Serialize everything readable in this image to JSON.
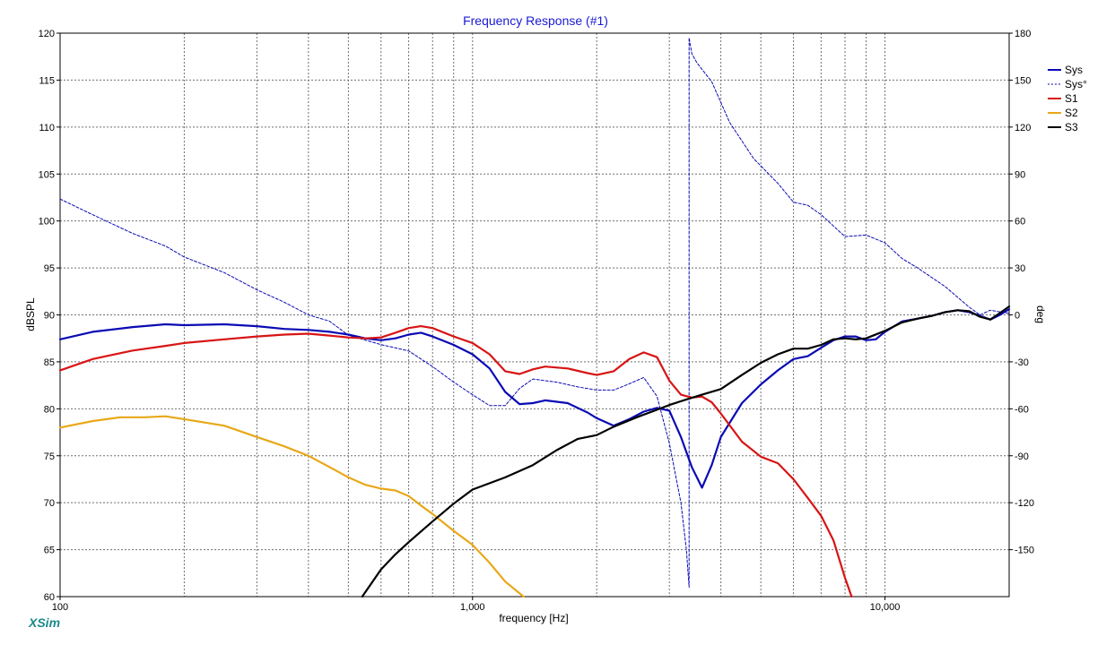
{
  "chart_data": {
    "type": "line",
    "title": "Frequency Response (#1)",
    "xlabel": "frequency [Hz]",
    "ylabel": "dBSPL",
    "y2label": "deg",
    "x_scale": "log",
    "xlim": [
      100,
      20000
    ],
    "ylim": [
      60,
      120
    ],
    "y2lim": [
      -180,
      180
    ],
    "x_tick_labels": [
      {
        "value": 100,
        "label": "100"
      },
      {
        "value": 1000,
        "label": "1,000"
      },
      {
        "value": 10000,
        "label": "10,000"
      }
    ],
    "y_ticks": [
      120,
      115,
      110,
      105,
      100,
      95,
      90,
      85,
      80,
      75,
      70,
      65,
      60
    ],
    "y2_ticks": [
      180,
      150,
      120,
      90,
      60,
      30,
      0,
      -30,
      -60,
      -90,
      -120,
      -150
    ],
    "grid": true,
    "legend_position": "top-right",
    "brand": "XSim",
    "series": [
      {
        "name": "Sys",
        "axis": "left",
        "color": "#0a0ab4",
        "style": "solid",
        "x": [
          100,
          120,
          150,
          180,
          200,
          250,
          300,
          350,
          400,
          450,
          500,
          550,
          600,
          650,
          700,
          750,
          800,
          900,
          1000,
          1100,
          1200,
          1300,
          1400,
          1500,
          1700,
          1900,
          2000,
          2200,
          2400,
          2600,
          2800,
          3000,
          3200,
          3400,
          3600,
          3800,
          4000,
          4500,
          5000,
          5500,
          6000,
          6500,
          7000,
          7500,
          8000,
          8500,
          9000,
          9500,
          10000,
          11000,
          12000,
          13000,
          14000,
          15000,
          16000,
          17000,
          18000,
          19000,
          20000
        ],
        "y": [
          87.4,
          88.2,
          88.7,
          89.0,
          88.9,
          89.0,
          88.8,
          88.5,
          88.4,
          88.2,
          87.9,
          87.5,
          87.3,
          87.5,
          87.9,
          88.1,
          87.7,
          86.8,
          85.8,
          84.3,
          81.8,
          80.5,
          80.6,
          80.9,
          80.6,
          79.6,
          79.0,
          78.2,
          78.9,
          79.7,
          80.1,
          79.8,
          77.0,
          73.8,
          71.6,
          74.0,
          77.0,
          80.6,
          82.6,
          84.1,
          85.3,
          85.6,
          86.5,
          87.3,
          87.7,
          87.7,
          87.3,
          87.4,
          88.2,
          89.3,
          89.6,
          89.9,
          90.3,
          90.5,
          90.3,
          89.9,
          89.5,
          90.0,
          90.6
        ]
      },
      {
        "name": "Sys°",
        "axis": "right",
        "color": "#0a0ab4",
        "style": "dashed",
        "x": [
          100,
          120,
          150,
          180,
          200,
          250,
          300,
          350,
          400,
          450,
          500,
          600,
          700,
          800,
          900,
          1000,
          1100,
          1200,
          1300,
          1400,
          1600,
          1800,
          2000,
          2200,
          2400,
          2600,
          2800,
          3000,
          3200,
          3300,
          3350,
          3350,
          3400,
          3500,
          3800,
          4200,
          4800,
          5500,
          6000,
          6500,
          7000,
          8000,
          9000,
          10000,
          11000,
          12000,
          14000,
          16000,
          17000,
          18000,
          20000
        ],
        "y": [
          74,
          64,
          52,
          44,
          37,
          27,
          16,
          8,
          0,
          -4,
          -13,
          -19,
          -23,
          -33,
          -43,
          -51,
          -58,
          -58,
          -47,
          -41,
          -43,
          -46,
          -48,
          -48,
          -44,
          -40,
          -52,
          -82,
          -120,
          -150,
          -174,
          177,
          167,
          161,
          149,
          123,
          100,
          84,
          72,
          70,
          64,
          50,
          51,
          46,
          36,
          30,
          18,
          5,
          0,
          3,
          1
        ]
      },
      {
        "name": "S1",
        "axis": "left",
        "color": "#d81414",
        "style": "solid",
        "x": [
          100,
          120,
          150,
          180,
          200,
          250,
          300,
          350,
          400,
          450,
          500,
          550,
          600,
          650,
          700,
          750,
          800,
          900,
          1000,
          1100,
          1200,
          1300,
          1400,
          1500,
          1700,
          1900,
          2000,
          2200,
          2400,
          2600,
          2800,
          3000,
          3200,
          3400,
          3600,
          3800,
          4000,
          4500,
          5000,
          5500,
          6000,
          6500,
          7000,
          7500,
          8000,
          8300
        ],
        "y": [
          84.1,
          85.3,
          86.2,
          86.7,
          87.0,
          87.4,
          87.7,
          87.9,
          88.0,
          87.8,
          87.6,
          87.5,
          87.6,
          88.1,
          88.6,
          88.8,
          88.6,
          87.7,
          87.0,
          85.8,
          84.0,
          83.7,
          84.2,
          84.5,
          84.3,
          83.8,
          83.6,
          84.0,
          85.3,
          86.0,
          85.5,
          83.0,
          81.5,
          81.2,
          81.3,
          80.7,
          79.5,
          76.5,
          74.9,
          74.2,
          72.5,
          70.5,
          68.6,
          66.0,
          62.0,
          60.0
        ]
      },
      {
        "name": "S2",
        "axis": "left",
        "color": "#e8a818",
        "style": "solid",
        "x": [
          100,
          120,
          140,
          160,
          180,
          200,
          250,
          300,
          350,
          400,
          450,
          500,
          550,
          600,
          650,
          700,
          750,
          800,
          900,
          1000,
          1100,
          1200,
          1330
        ],
        "y": [
          78.0,
          78.7,
          79.1,
          79.1,
          79.2,
          78.9,
          78.2,
          77.0,
          76.0,
          75.0,
          73.8,
          72.7,
          71.9,
          71.5,
          71.3,
          70.7,
          69.7,
          68.8,
          67.0,
          65.5,
          63.6,
          61.6,
          60.0
        ]
      },
      {
        "name": "S3",
        "axis": "left",
        "color": "#000000",
        "style": "solid",
        "x": [
          540,
          600,
          650,
          700,
          800,
          900,
          1000,
          1200,
          1400,
          1600,
          1800,
          2000,
          2200,
          2500,
          2800,
          3000,
          3300,
          3600,
          4000,
          4500,
          5000,
          5500,
          6000,
          6500,
          7000,
          7500,
          8000,
          8500,
          9000,
          10000,
          11000,
          12000,
          13000,
          14000,
          15000,
          16000,
          17000,
          18000,
          19000,
          20000
        ],
        "y": [
          60.0,
          62.9,
          64.5,
          65.8,
          68.0,
          69.9,
          71.4,
          72.7,
          74.0,
          75.6,
          76.8,
          77.2,
          78.1,
          79.1,
          79.9,
          80.4,
          81.0,
          81.5,
          82.1,
          83.6,
          84.9,
          85.8,
          86.4,
          86.4,
          86.8,
          87.4,
          87.5,
          87.4,
          87.5,
          88.3,
          89.2,
          89.6,
          89.9,
          90.3,
          90.5,
          90.4,
          89.8,
          89.5,
          90.2,
          90.9
        ]
      }
    ]
  }
}
